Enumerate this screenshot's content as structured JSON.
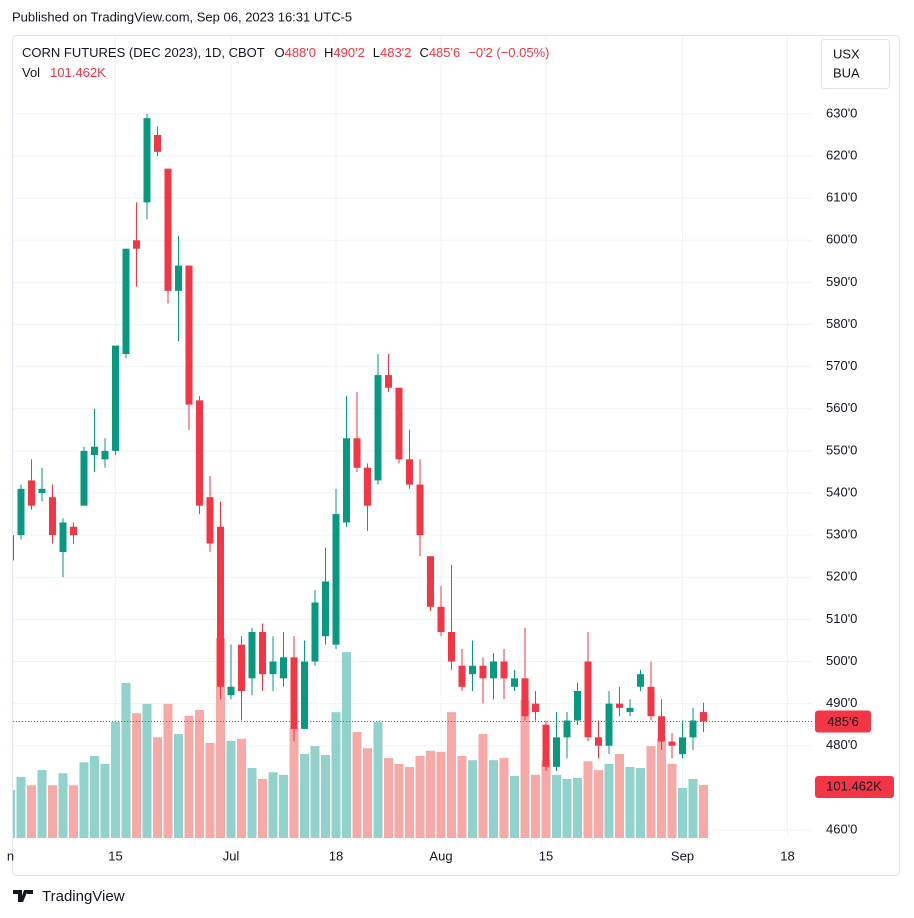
{
  "publish": "Published on TradingView.com, Sep 06, 2023 16:31 UTC-5",
  "footer": "TradingView",
  "chart_data": {
    "type": "candlestick",
    "symbol": "CORN FUTURES (DEC 2023), 1D, CBOT",
    "legend": [
      {
        "key": "O",
        "value": "488'0"
      },
      {
        "key": "H",
        "value": "490'2"
      },
      {
        "key": "L",
        "value": "483'2"
      },
      {
        "key": "C",
        "value": "485'6"
      }
    ],
    "change": "−0'2 (−0.05%)",
    "volume_title": "Vol",
    "volume_legend": "101.462K",
    "currency": "USX",
    "unit": "BUA",
    "last_price_label": "485'6",
    "last_volume_label": "101.462K",
    "up_color": "#089981",
    "down_color": "#f23645",
    "volume_up_color": "#92d2cc",
    "volume_down_color": "#f7a9a7",
    "grid": true,
    "categories": [
      "n",
      null,
      null,
      null,
      null,
      null,
      null,
      null,
      null,
      null,
      "15",
      null,
      null,
      null,
      null,
      null,
      null,
      null,
      null,
      null,
      null,
      "Jul",
      null,
      null,
      null,
      null,
      null,
      null,
      null,
      null,
      null,
      "18",
      null,
      null,
      null,
      null,
      null,
      null,
      null,
      null,
      null,
      "Aug",
      null,
      null,
      null,
      null,
      null,
      null,
      null,
      null,
      null,
      "15",
      null,
      null,
      null,
      null,
      null,
      null,
      null,
      null,
      null,
      null,
      null,
      null,
      "Sep",
      null,
      null,
      null,
      null,
      null,
      null,
      null,
      null,
      null,
      "18"
    ],
    "open": [
      524,
      530,
      543,
      540,
      539,
      526,
      532,
      537,
      549,
      548,
      550,
      573,
      600,
      609,
      625,
      617,
      588,
      594,
      562,
      539,
      532,
      492,
      504,
      496,
      507,
      497,
      496,
      501,
      484,
      500,
      506,
      504,
      533,
      553,
      546,
      543,
      568,
      565,
      548,
      542,
      525,
      513,
      507,
      499,
      497,
      499,
      496,
      500,
      494,
      496,
      490,
      485,
      475,
      482,
      486,
      500,
      482,
      480,
      490,
      488,
      494,
      494,
      487,
      481,
      478,
      482,
      488,
      null,
      null,
      null,
      null,
      null,
      null,
      null,
      null
    ],
    "high": [
      531,
      542,
      548,
      546,
      542,
      534,
      533,
      551,
      560,
      553,
      575,
      598,
      609,
      630,
      627,
      617,
      601,
      594,
      563,
      544,
      538,
      504,
      506,
      508,
      509,
      506,
      507,
      506,
      505,
      517,
      527,
      541,
      563,
      564,
      547,
      573,
      573,
      565,
      555,
      548,
      525,
      518,
      523,
      503,
      505,
      501,
      502,
      503,
      498,
      508,
      493,
      486,
      488,
      488,
      495,
      507,
      486,
      493,
      494,
      491,
      498,
      500,
      491,
      483,
      486,
      489,
      490.25,
      null,
      null,
      null,
      null,
      null,
      null,
      null,
      null
    ],
    "low": [
      520,
      529,
      536,
      538,
      528,
      520,
      528,
      537,
      545,
      546,
      549,
      572,
      589,
      605,
      620,
      585,
      576,
      555,
      535,
      526,
      491,
      491,
      486,
      492,
      493,
      493,
      494,
      481,
      484,
      499,
      504,
      503,
      532,
      545,
      531,
      542,
      564,
      547,
      541,
      525,
      512,
      506,
      498,
      493,
      493,
      490,
      491,
      491,
      493,
      486,
      486,
      474,
      474,
      477,
      485,
      481,
      477,
      478,
      487,
      487,
      493,
      486,
      479,
      477,
      477,
      479,
      483.25,
      null,
      null,
      null,
      null,
      null,
      null,
      null,
      null
    ],
    "close": [
      530,
      541,
      537,
      541,
      530,
      533,
      530,
      550,
      551,
      550,
      575,
      598,
      598,
      629,
      621,
      588,
      594,
      561,
      537,
      528,
      494,
      494,
      493,
      507,
      497,
      500,
      501,
      484,
      500,
      514,
      519,
      535,
      553,
      546,
      537,
      568,
      565,
      548,
      542,
      530,
      513,
      507,
      500,
      494,
      499,
      496,
      500,
      496,
      496,
      487,
      488,
      475,
      482,
      486,
      493,
      482,
      480,
      490,
      489,
      489,
      497,
      487,
      481,
      480,
      482,
      486,
      485.75,
      null,
      null,
      null,
      null,
      null,
      null,
      null,
      null
    ],
    "volume": [
      92000,
      117000,
      101000,
      130000,
      101000,
      124000,
      101000,
      145000,
      157000,
      142000,
      222000,
      297000,
      239000,
      257000,
      193000,
      257000,
      199000,
      234000,
      245000,
      182000,
      383000,
      186000,
      190000,
      134000,
      113000,
      126000,
      121000,
      211000,
      161000,
      176000,
      159000,
      241000,
      356000,
      203000,
      172000,
      222000,
      153000,
      142000,
      136000,
      157000,
      167000,
      165000,
      241000,
      157000,
      149000,
      199000,
      149000,
      153000,
      119000,
      264000,
      121000,
      149000,
      121000,
      113000,
      115000,
      147000,
      130000,
      142000,
      161000,
      136000,
      134000,
      176000,
      191000,
      142000,
      96000,
      113000,
      101462,
      null,
      null,
      null,
      null,
      null,
      null,
      null,
      null
    ],
    "ylim": [
      458.1,
      648.5
    ],
    "yticks": [
      {
        "value": 460,
        "label": "460'0"
      },
      {
        "value": 480,
        "label": "480'0"
      },
      {
        "value": 490,
        "label": "490'0"
      },
      {
        "value": 500,
        "label": "500'0"
      },
      {
        "value": 510,
        "label": "510'0"
      },
      {
        "value": 520,
        "label": "520'0"
      },
      {
        "value": 530,
        "label": "530'0"
      },
      {
        "value": 540,
        "label": "540'0"
      },
      {
        "value": 550,
        "label": "550'0"
      },
      {
        "value": 560,
        "label": "560'0"
      },
      {
        "value": 570,
        "label": "570'0"
      },
      {
        "value": 580,
        "label": "580'0"
      },
      {
        "value": 590,
        "label": "590'0"
      },
      {
        "value": 600,
        "label": "600'0"
      },
      {
        "value": 610,
        "label": "610'0"
      },
      {
        "value": 620,
        "label": "620'0"
      },
      {
        "value": 630,
        "label": "630'0"
      }
    ]
  }
}
